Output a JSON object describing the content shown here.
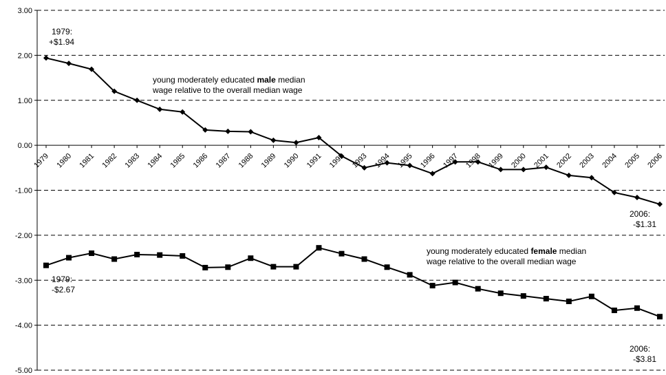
{
  "chart_data": {
    "type": "line",
    "x": [
      "1979",
      "1980",
      "1981",
      "1982",
      "1983",
      "1984",
      "1985",
      "1986",
      "1987",
      "1988",
      "1989",
      "1990",
      "1991",
      "1992",
      "1993",
      "1994",
      "1995",
      "1996",
      "1997",
      "1998",
      "1999",
      "2000",
      "2001",
      "2002",
      "2003",
      "2004",
      "2005",
      "2006"
    ],
    "ylim": [
      -5,
      3
    ],
    "y_ticks": [
      "3.00",
      "2.00",
      "1.00",
      "0.00",
      "-1.00",
      "-2.00",
      "-3.00",
      "-4.00",
      "-5.00"
    ],
    "grid": "horizontal dashed",
    "series": [
      {
        "key": "male",
        "marker": "diamond",
        "values": [
          1.94,
          1.82,
          1.69,
          1.2,
          1.0,
          0.8,
          0.74,
          0.34,
          0.31,
          0.3,
          0.11,
          0.06,
          0.17,
          -0.24,
          -0.5,
          -0.39,
          -0.45,
          -0.63,
          -0.37,
          -0.37,
          -0.54,
          -0.54,
          -0.49,
          -0.67,
          -0.72,
          -1.05,
          -1.16,
          -1.31
        ]
      },
      {
        "key": "female",
        "marker": "square",
        "values": [
          -2.67,
          -2.5,
          -2.4,
          -2.53,
          -2.43,
          -2.44,
          -2.46,
          -2.72,
          -2.71,
          -2.51,
          -2.7,
          -2.7,
          -2.28,
          -2.41,
          -2.53,
          -2.71,
          -2.88,
          -3.12,
          -3.05,
          -3.19,
          -3.29,
          -3.35,
          -3.41,
          -3.47,
          -3.36,
          -3.67,
          -3.62,
          -3.81
        ]
      }
    ],
    "annotations": {
      "male_label_line1_pre": "young moderately educated ",
      "male_label_bold": "male",
      "male_label_line1_post": " median",
      "male_label_line2": "wage relative to the overall median wage",
      "female_label_line1_pre": "young moderately educated ",
      "female_label_bold": "female",
      "female_label_line1_post": " median",
      "female_label_line2": "wage relative to the overall median wage",
      "male_start_line1": "1979:",
      "male_start_line2": "+$1.94",
      "male_end_line1": "2006:",
      "male_end_line2": "-$1.31",
      "female_start_line1": "1979:",
      "female_start_line2": "-$2.67",
      "female_end_line1": "2006:",
      "female_end_line2": "-$3.81"
    }
  }
}
